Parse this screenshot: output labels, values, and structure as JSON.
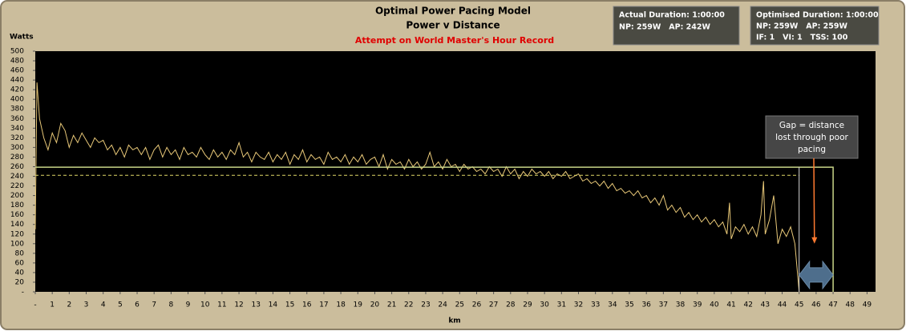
{
  "chart_data": {
    "type": "line",
    "title": "Optimal Power Pacing Model",
    "subtitle": "Power v Distance",
    "annotation": "Attempt on World Master's Hour Record",
    "y_label": "Watts",
    "x_label": "km",
    "xlim": [
      0,
      49.5
    ],
    "ylim": [
      0,
      500
    ],
    "xticks": [
      {
        "value": 0,
        "label": "-"
      },
      1,
      2,
      3,
      4,
      5,
      6,
      7,
      8,
      9,
      10,
      11,
      12,
      13,
      14,
      15,
      16,
      17,
      18,
      19,
      20,
      21,
      22,
      23,
      24,
      25,
      26,
      27,
      28,
      29,
      30,
      31,
      32,
      33,
      34,
      35,
      36,
      37,
      38,
      39,
      40,
      41,
      42,
      43,
      44,
      45,
      46,
      47,
      48,
      49
    ],
    "yticks": [
      {
        "value": 0,
        "label": "-"
      },
      20,
      40,
      60,
      80,
      100,
      120,
      140,
      160,
      180,
      200,
      220,
      240,
      260,
      280,
      300,
      320,
      340,
      360,
      380,
      400,
      420,
      440,
      460,
      480,
      500
    ],
    "series": [
      {
        "color": "#e8c878",
        "style": "solid",
        "width": 1,
        "x": [
          0,
          0.1,
          0.25,
          0.5,
          0.75,
          1,
          1.25,
          1.5,
          1.75,
          2,
          2.25,
          2.5,
          2.75,
          3,
          3.25,
          3.5,
          3.75,
          4,
          4.25,
          4.5,
          4.75,
          5,
          5.25,
          5.5,
          5.75,
          6,
          6.25,
          6.5,
          6.75,
          7,
          7.25,
          7.5,
          7.75,
          8,
          8.25,
          8.5,
          8.75,
          9,
          9.25,
          9.5,
          9.75,
          10,
          10.25,
          10.5,
          10.75,
          11,
          11.25,
          11.5,
          11.75,
          12,
          12.25,
          12.5,
          12.75,
          13,
          13.25,
          13.5,
          13.75,
          14,
          14.25,
          14.5,
          14.75,
          15,
          15.25,
          15.5,
          15.75,
          16,
          16.25,
          16.5,
          16.75,
          17,
          17.25,
          17.5,
          17.75,
          18,
          18.25,
          18.5,
          18.75,
          19,
          19.25,
          19.5,
          19.75,
          20,
          20.25,
          20.5,
          20.75,
          21,
          21.25,
          21.5,
          21.75,
          22,
          22.25,
          22.5,
          22.75,
          23,
          23.25,
          23.5,
          23.75,
          24,
          24.25,
          24.5,
          24.75,
          25,
          25.25,
          25.5,
          25.75,
          26,
          26.25,
          26.5,
          26.75,
          27,
          27.25,
          27.5,
          27.75,
          28,
          28.25,
          28.5,
          28.75,
          29,
          29.25,
          29.5,
          29.75,
          30,
          30.25,
          30.5,
          30.75,
          31,
          31.25,
          31.5,
          31.75,
          32,
          32.25,
          32.5,
          32.75,
          33,
          33.25,
          33.5,
          33.75,
          34,
          34.25,
          34.5,
          34.75,
          35,
          35.25,
          35.5,
          35.75,
          36,
          36.25,
          36.5,
          36.75,
          37,
          37.25,
          37.5,
          37.75,
          38,
          38.25,
          38.5,
          38.75,
          39,
          39.25,
          39.5,
          39.75,
          40,
          40.25,
          40.5,
          40.75,
          40.9,
          41,
          41.25,
          41.5,
          41.75,
          42,
          42.25,
          42.5,
          42.75,
          42.9,
          43,
          43.25,
          43.5,
          43.75,
          44,
          44.25,
          44.5,
          44.75,
          44.9,
          45
        ],
        "values": [
          130,
          435,
          360,
          320,
          295,
          330,
          310,
          350,
          335,
          300,
          325,
          310,
          330,
          315,
          300,
          320,
          310,
          315,
          295,
          305,
          285,
          300,
          280,
          305,
          295,
          300,
          285,
          300,
          275,
          295,
          305,
          280,
          300,
          285,
          295,
          275,
          300,
          285,
          290,
          280,
          300,
          285,
          275,
          295,
          280,
          290,
          275,
          295,
          285,
          310,
          280,
          290,
          270,
          290,
          280,
          275,
          290,
          270,
          285,
          275,
          290,
          265,
          285,
          275,
          295,
          270,
          285,
          275,
          280,
          265,
          290,
          275,
          280,
          270,
          285,
          265,
          280,
          270,
          285,
          265,
          275,
          280,
          260,
          285,
          255,
          275,
          265,
          270,
          255,
          275,
          260,
          270,
          255,
          265,
          290,
          260,
          270,
          255,
          275,
          260,
          265,
          250,
          265,
          255,
          260,
          250,
          255,
          245,
          260,
          250,
          255,
          240,
          260,
          245,
          255,
          235,
          250,
          240,
          255,
          245,
          250,
          240,
          250,
          235,
          245,
          240,
          250,
          235,
          240,
          245,
          230,
          235,
          225,
          230,
          220,
          230,
          215,
          225,
          210,
          215,
          205,
          210,
          200,
          210,
          195,
          200,
          185,
          195,
          180,
          200,
          170,
          180,
          165,
          175,
          155,
          165,
          150,
          160,
          145,
          155,
          140,
          150,
          135,
          145,
          120,
          185,
          110,
          135,
          125,
          140,
          120,
          135,
          115,
          160,
          230,
          120,
          150,
          200,
          100,
          130,
          115,
          135,
          100,
          40,
          0
        ]
      },
      {
        "color": "#e0d868",
        "style": "dashed",
        "width": 1,
        "x": [
          0,
          45
        ],
        "values": [
          242,
          242
        ]
      },
      {
        "color": "#c8d488",
        "style": "solid",
        "width": 1.5,
        "x": [
          0,
          47,
          47
        ],
        "values": [
          259,
          259,
          0
        ]
      },
      {
        "color": "#d8d8d8",
        "style": "solid",
        "width": 1,
        "x": [
          45,
          45
        ],
        "values": [
          0,
          259
        ]
      }
    ],
    "gap": {
      "x": [
        45,
        47
      ],
      "y": 35
    },
    "gap_note": {
      "lines": [
        "Gap = distance",
        "lost through poor",
        "pacing"
      ],
      "x": 45.9,
      "y": 100
    }
  },
  "stats_boxes": [
    {
      "lines": [
        "Actual Duration: 1:00:00",
        "NP: 259W   AP: 242W"
      ]
    },
    {
      "lines": [
        "Optimised Duration: 1:00:00",
        "NP: 259W   AP: 259W",
        "IF: 1   VI: 1   TSS: 100"
      ]
    }
  ]
}
